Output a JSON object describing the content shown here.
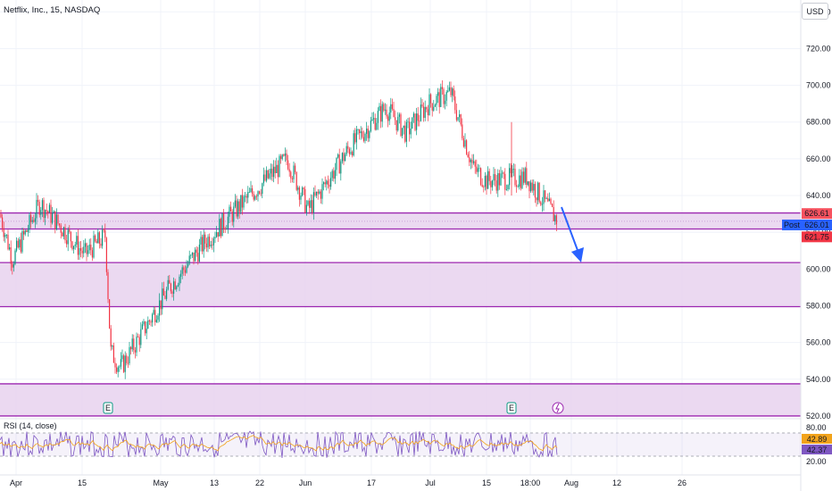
{
  "header": {
    "symbol_title": "Netflix, Inc., 15, NASDAQ",
    "currency_button": "USD"
  },
  "rsi": {
    "title": "RSI (14, close)",
    "upper_label": "80.00",
    "value_a": "42.89",
    "value_b": "42.37",
    "lower_label": "20.00",
    "line_color": "#7e57c2",
    "ma_color": "#f2a31b"
  },
  "colors": {
    "up": "#089981",
    "down": "#f23645",
    "zone_fill": "#e7d2ee",
    "zone_border": "#9c27b0",
    "arrow": "#2962ff",
    "grid": "#f0f3fa"
  },
  "price_tags": {
    "upper": "626.61",
    "post_label": "Post",
    "post_value": "626.01",
    "lower": "621.75"
  },
  "events": [
    "E",
    "E",
    "lightning"
  ],
  "chart_data": {
    "type": "candlestick",
    "ylim": [
      520,
      745
    ],
    "y_ticks": [
      520,
      540,
      560,
      580,
      600,
      620,
      640,
      660,
      680,
      700,
      720,
      740
    ],
    "x_ticks": [
      "Apr",
      "15",
      "May",
      "13",
      "22",
      "Jun",
      "17",
      "Jul",
      "15",
      "18:00",
      "Aug",
      "12",
      "26"
    ],
    "zones": [
      {
        "top": 630.5,
        "bottom": 621.8
      },
      {
        "top": 603.5,
        "bottom": 579.5
      },
      {
        "top": 537.5,
        "bottom": 520
      }
    ],
    "ohlc_waypoints": [
      {
        "t": "Apr",
        "price": 630
      },
      {
        "t": "Apr-early",
        "price": 605
      },
      {
        "t": "Apr-mid",
        "price": 636
      },
      {
        "t": "15",
        "price": 608
      },
      {
        "t": "Apr-late",
        "price": 618
      },
      {
        "t": "Apr-gap",
        "price": 555
      },
      {
        "t": "May",
        "price": 546
      },
      {
        "t": "May-early",
        "price": 590
      },
      {
        "t": "13",
        "price": 615
      },
      {
        "t": "22",
        "price": 640
      },
      {
        "t": "May-end",
        "price": 660
      },
      {
        "t": "Jun",
        "price": 632
      },
      {
        "t": "Jun-mid",
        "price": 665
      },
      {
        "t": "17",
        "price": 688
      },
      {
        "t": "Jun-late",
        "price": 674
      },
      {
        "t": "Jul",
        "price": 690
      },
      {
        "t": "Jul-high",
        "price": 696
      },
      {
        "t": "Jul-drop",
        "price": 655
      },
      {
        "t": "15",
        "price": 648
      },
      {
        "t": "18:00",
        "price": 650
      },
      {
        "t": "Jul-end",
        "price": 626
      }
    ],
    "last_price": 626.01,
    "rsi_range": [
      20,
      80
    ]
  }
}
